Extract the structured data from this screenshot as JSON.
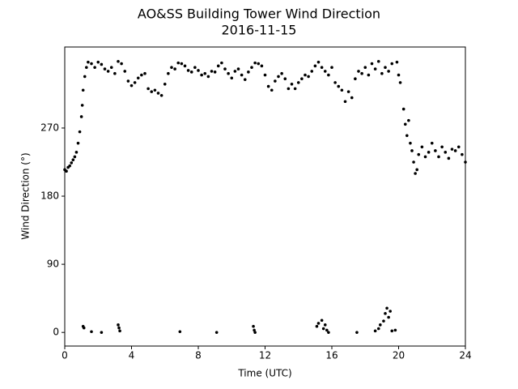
{
  "chart_data": {
    "type": "scatter",
    "title": "AO&SS Building Tower Wind Direction",
    "subtitle": "2016-11-15",
    "x_label": "Time (UTC)",
    "y_label": "Wind Direction (°)",
    "color": "#000000",
    "xlim": [
      0,
      24
    ],
    "xticks": [
      0,
      4,
      8,
      12,
      16,
      20,
      24
    ],
    "ylim": [
      -18,
      377
    ],
    "yticks": [
      0,
      90,
      180,
      270
    ],
    "x": [
      0,
      0.1,
      0.2,
      0.3,
      0.4,
      0.5,
      0.6,
      0.7,
      0.8,
      0.9,
      1.0,
      1.05,
      1.1,
      1.2,
      1.3,
      1.4,
      1.6,
      1.8,
      2.0,
      2.2,
      2.4,
      2.6,
      2.8,
      3.0,
      3.2,
      3.4,
      3.6,
      3.8,
      4.0,
      4.2,
      4.4,
      4.6,
      4.8,
      5.0,
      5.2,
      5.4,
      5.6,
      5.8,
      6.0,
      6.2,
      6.4,
      6.6,
      6.8,
      7.0,
      7.2,
      7.4,
      7.6,
      7.8,
      8.0,
      8.2,
      8.4,
      8.6,
      8.8,
      9.0,
      9.2,
      9.4,
      9.6,
      9.8,
      10.0,
      10.2,
      10.4,
      10.6,
      10.8,
      11.0,
      11.2,
      11.4,
      11.6,
      11.8,
      12.0,
      12.2,
      12.4,
      12.6,
      12.8,
      13.0,
      13.2,
      13.4,
      13.6,
      13.8,
      14.0,
      14.2,
      14.4,
      14.6,
      14.8,
      15.0,
      15.2,
      15.4,
      15.6,
      15.8,
      16.0,
      16.2,
      16.4,
      16.6,
      16.8,
      17.0,
      17.2,
      17.4,
      17.6,
      17.8,
      18.0,
      18.2,
      18.4,
      18.6,
      18.8,
      19.0,
      19.2,
      19.4,
      19.6,
      19.9,
      20.0,
      20.1,
      20.3,
      20.4,
      20.5,
      20.6,
      20.7,
      20.8,
      20.9,
      21.0,
      21.1,
      21.2,
      21.4,
      21.6,
      21.8,
      22.0,
      22.2,
      22.4,
      22.6,
      22.8,
      23.0,
      23.2,
      23.4,
      23.6,
      23.8,
      24.0,
      1.1,
      1.15,
      1.6,
      2.2,
      3.2,
      3.25,
      3.3,
      6.9,
      9.1,
      11.3,
      11.35,
      11.4,
      15.1,
      15.2,
      15.4,
      15.5,
      15.6,
      15.7,
      15.8,
      17.5,
      18.6,
      18.8,
      18.9,
      19.1,
      19.2,
      19.3,
      19.4,
      19.5,
      19.6,
      19.8
    ],
    "values": [
      215,
      213,
      218,
      220,
      224,
      228,
      232,
      238,
      250,
      265,
      285,
      300,
      320,
      338,
      350,
      357,
      355,
      350,
      357,
      354,
      348,
      345,
      350,
      342,
      358,
      355,
      345,
      332,
      326,
      330,
      336,
      340,
      342,
      322,
      318,
      320,
      316,
      313,
      328,
      342,
      350,
      348,
      356,
      355,
      352,
      346,
      344,
      350,
      346,
      340,
      342,
      338,
      345,
      344,
      352,
      356,
      348,
      342,
      336,
      345,
      348,
      340,
      334,
      344,
      350,
      356,
      355,
      352,
      340,
      325,
      320,
      332,
      338,
      342,
      335,
      322,
      328,
      322,
      330,
      335,
      340,
      338,
      345,
      352,
      357,
      350,
      345,
      340,
      350,
      330,
      325,
      320,
      305,
      318,
      310,
      335,
      345,
      342,
      350,
      340,
      355,
      348,
      358,
      342,
      350,
      345,
      355,
      357,
      340,
      330,
      295,
      275,
      260,
      280,
      250,
      240,
      225,
      210,
      215,
      235,
      245,
      232,
      238,
      250,
      240,
      232,
      245,
      238,
      230,
      242,
      240,
      245,
      235,
      225,
      8,
      6,
      1,
      0,
      10,
      6,
      2,
      1,
      0,
      8,
      3,
      0,
      8,
      12,
      16,
      5,
      10,
      3,
      0,
      0,
      2,
      5,
      10,
      15,
      25,
      32,
      20,
      28,
      2,
      3
    ]
  }
}
